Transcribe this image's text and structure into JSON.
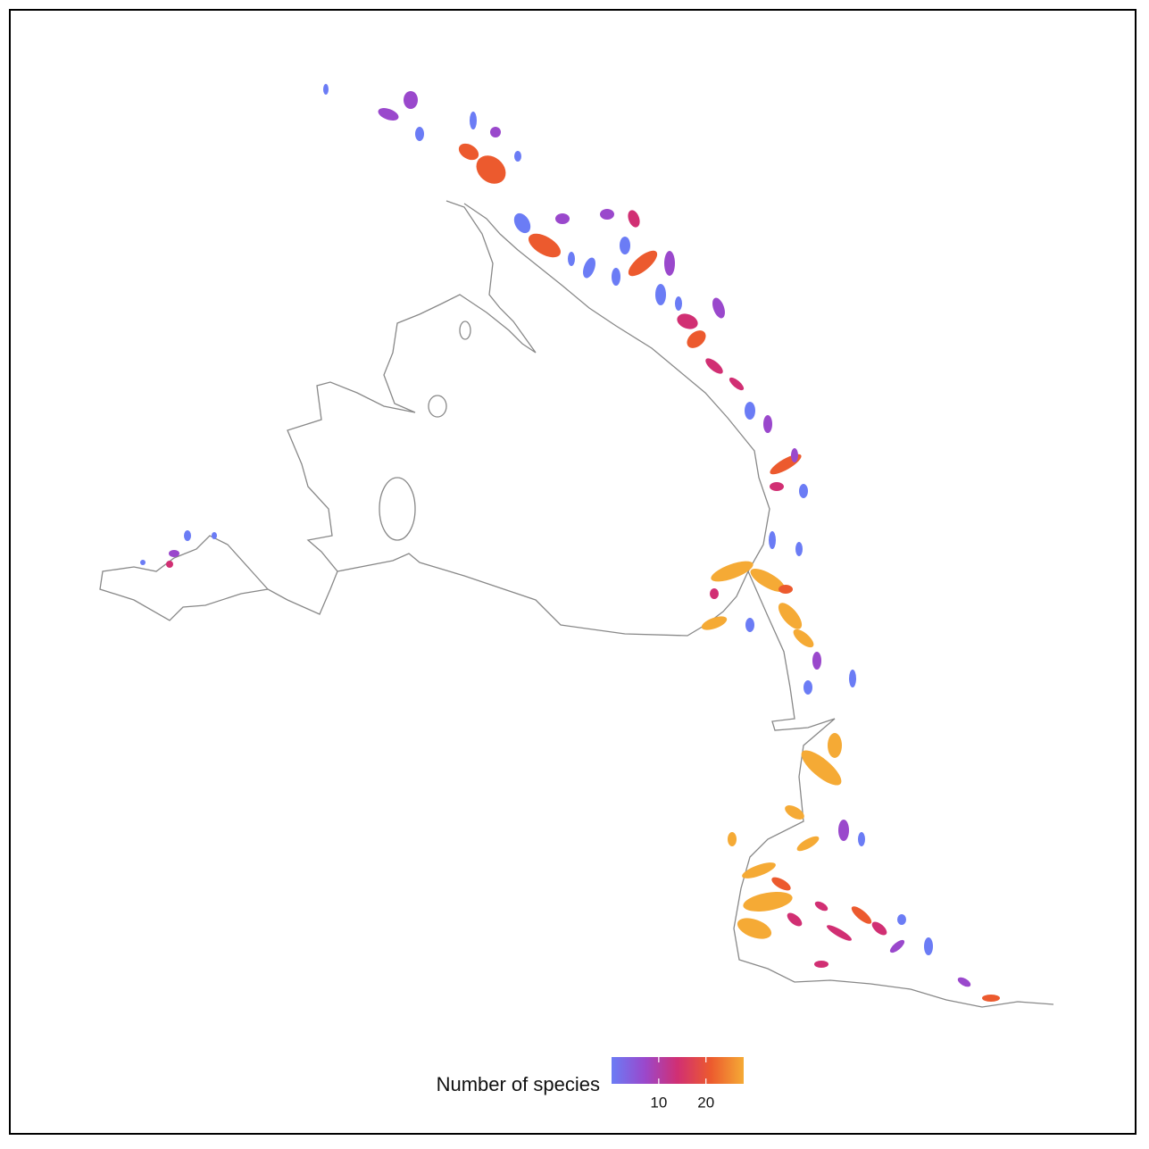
{
  "chart_data": {
    "type": "choropleth-map",
    "legend": {
      "title": "Number of species",
      "lim": [
        0,
        28
      ],
      "ticks": [
        10,
        20
      ],
      "colors": [
        "#6b7cf5",
        "#9a48cc",
        "#d12f73",
        "#ec5a2e",
        "#f5aa35"
      ]
    }
  }
}
